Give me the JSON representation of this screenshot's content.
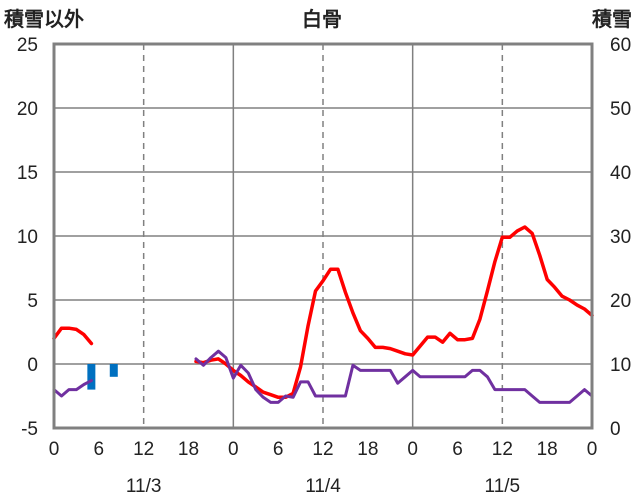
{
  "chart_data": {
    "type": "line",
    "title": "白骨",
    "left_axis_label": "積雪以外",
    "right_axis_label": "積雪",
    "left_ylim": [
      -5,
      25
    ],
    "left_ticks": [
      -5,
      0,
      5,
      10,
      15,
      20,
      25
    ],
    "right_ylim": [
      0,
      60
    ],
    "right_ticks": [
      0,
      10,
      20,
      30,
      40,
      50,
      60
    ],
    "xlim": [
      0,
      72
    ],
    "x_ticks": [
      0,
      6,
      12,
      18,
      24,
      30,
      36,
      42,
      48,
      54,
      60,
      66,
      72
    ],
    "x_tick_labels": [
      "0",
      "6",
      "12",
      "18",
      "0",
      "6",
      "12",
      "18",
      "0",
      "6",
      "12",
      "18",
      "0"
    ],
    "date_ticks": [
      12,
      36,
      60
    ],
    "date_labels": [
      "11/3",
      "11/4",
      "11/5"
    ],
    "x_unit": "hours from 11/3 00:00",
    "series": [
      {
        "color": "#ff0000",
        "axis": "left",
        "segments": [
          [
            [
              0,
              2.0
            ],
            [
              1,
              2.8
            ],
            [
              2,
              2.8
            ],
            [
              3,
              2.7
            ],
            [
              4,
              2.3
            ],
            [
              5,
              1.6
            ]
          ],
          [
            [
              19,
              0.2
            ],
            [
              20,
              0.1
            ],
            [
              21,
              0.3
            ],
            [
              22,
              0.4
            ],
            [
              23,
              0.0
            ],
            [
              24,
              -0.5
            ],
            [
              25,
              -0.9
            ],
            [
              26,
              -1.4
            ],
            [
              27,
              -1.8
            ],
            [
              28,
              -2.2
            ],
            [
              29,
              -2.4
            ],
            [
              30,
              -2.6
            ],
            [
              31,
              -2.6
            ],
            [
              32,
              -2.3
            ],
            [
              33,
              -0.2
            ],
            [
              34,
              3.0
            ],
            [
              35,
              5.7
            ],
            [
              36,
              6.5
            ],
            [
              37,
              7.4
            ],
            [
              38,
              7.4
            ],
            [
              39,
              5.6
            ],
            [
              40,
              4.0
            ],
            [
              41,
              2.6
            ],
            [
              42,
              2.0
            ],
            [
              43,
              1.3
            ],
            [
              44,
              1.3
            ],
            [
              45,
              1.2
            ],
            [
              46,
              1.0
            ],
            [
              47,
              0.8
            ],
            [
              48,
              0.7
            ],
            [
              49,
              1.4
            ],
            [
              50,
              2.1
            ],
            [
              51,
              2.1
            ],
            [
              52,
              1.7
            ],
            [
              53,
              2.4
            ],
            [
              54,
              1.9
            ],
            [
              55,
              1.9
            ],
            [
              56,
              2.0
            ],
            [
              57,
              3.5
            ],
            [
              58,
              5.7
            ],
            [
              59,
              8.0
            ],
            [
              60,
              9.9
            ],
            [
              61,
              9.9
            ],
            [
              62,
              10.4
            ],
            [
              63,
              10.7
            ],
            [
              64,
              10.2
            ],
            [
              65,
              8.5
            ],
            [
              66,
              6.6
            ],
            [
              67,
              6.0
            ],
            [
              68,
              5.3
            ],
            [
              69,
              5.0
            ],
            [
              70,
              4.6
            ],
            [
              71,
              4.3
            ],
            [
              72,
              3.8
            ]
          ]
        ]
      },
      {
        "color": "#7030a0",
        "axis": "left",
        "segments": [
          [
            [
              0,
              -2.0
            ],
            [
              1,
              -2.5
            ],
            [
              2,
              -2.0
            ],
            [
              3,
              -2.0
            ],
            [
              4,
              -1.6
            ],
            [
              5,
              -1.3
            ]
          ],
          [
            [
              19,
              0.4
            ],
            [
              20,
              -0.1
            ],
            [
              21,
              0.5
            ],
            [
              22,
              1.0
            ],
            [
              23,
              0.5
            ],
            [
              24,
              -1.1
            ],
            [
              25,
              -0.1
            ],
            [
              26,
              -0.7
            ],
            [
              27,
              -2.0
            ],
            [
              28,
              -2.6
            ],
            [
              29,
              -3.0
            ],
            [
              30,
              -3.0
            ],
            [
              31,
              -2.5
            ],
            [
              32,
              -2.6
            ],
            [
              33,
              -1.4
            ],
            [
              34,
              -1.4
            ],
            [
              35,
              -2.5
            ],
            [
              36,
              -2.5
            ],
            [
              37,
              -2.5
            ],
            [
              38,
              -2.5
            ],
            [
              39,
              -2.5
            ],
            [
              40,
              -0.1
            ],
            [
              41,
              -0.5
            ],
            [
              42,
              -0.5
            ],
            [
              43,
              -0.5
            ],
            [
              44,
              -0.5
            ],
            [
              45,
              -0.5
            ],
            [
              46,
              -1.5
            ],
            [
              47,
              -1.0
            ],
            [
              48,
              -0.5
            ],
            [
              49,
              -1.0
            ],
            [
              50,
              -1.0
            ],
            [
              51,
              -1.0
            ],
            [
              52,
              -1.0
            ],
            [
              53,
              -1.0
            ],
            [
              54,
              -1.0
            ],
            [
              55,
              -1.0
            ],
            [
              56,
              -0.5
            ],
            [
              57,
              -0.5
            ],
            [
              58,
              -1.0
            ],
            [
              59,
              -2.0
            ],
            [
              60,
              -2.0
            ],
            [
              61,
              -2.0
            ],
            [
              62,
              -2.0
            ],
            [
              63,
              -2.0
            ],
            [
              64,
              -2.5
            ],
            [
              65,
              -3.0
            ],
            [
              66,
              -3.0
            ],
            [
              67,
              -3.0
            ],
            [
              68,
              -3.0
            ],
            [
              69,
              -3.0
            ],
            [
              70,
              -2.5
            ],
            [
              71,
              -2.0
            ],
            [
              72,
              -2.5
            ]
          ]
        ]
      }
    ],
    "bars": {
      "color": "#0070c0",
      "axis": "left",
      "values": [
        [
          5,
          -2.0
        ],
        [
          8,
          -1.0
        ]
      ]
    },
    "vertical_gridlines": {
      "solid": [
        24,
        48
      ],
      "dashed": [
        12,
        36,
        60
      ]
    },
    "horizontal_gridlines": [
      0,
      5,
      10,
      15,
      20
    ],
    "grid_color": "#808080"
  }
}
